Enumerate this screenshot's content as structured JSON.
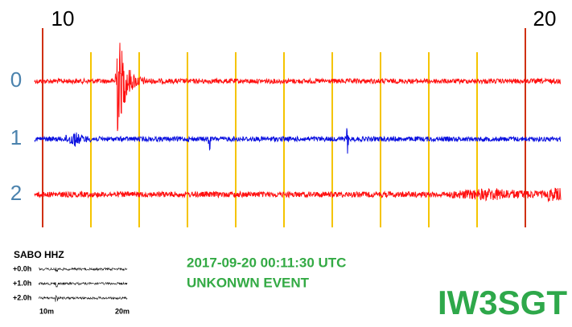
{
  "header": {
    "left_mark": "10",
    "right_mark": "20"
  },
  "traces": {
    "labels": [
      "0",
      "1",
      "2"
    ]
  },
  "inset": {
    "station": "SABO HHZ",
    "rows": [
      "+0.0h",
      "+1.0h",
      "+2.0h"
    ],
    "x_labels": [
      "10m",
      "20m"
    ]
  },
  "event": {
    "time": "2017-09-20 00:11:30 UTC",
    "label": "UNKONWN EVENT"
  },
  "callsign": "IW3SGT"
}
